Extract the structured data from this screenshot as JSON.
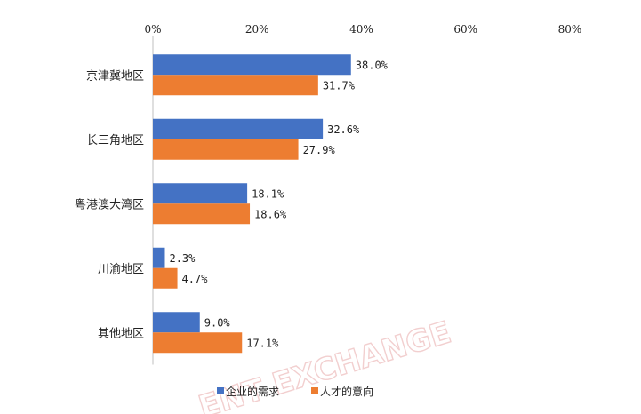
{
  "chart_data": {
    "type": "bar",
    "orientation": "horizontal",
    "categories": [
      "京津冀地区",
      "长三角地区",
      "粤港澳大湾区",
      "川渝地区",
      "其他地区"
    ],
    "series": [
      {
        "name": "企业的需求",
        "values": [
          38.0,
          32.6,
          18.1,
          2.3,
          9.0
        ],
        "color": "#4472C4"
      },
      {
        "name": "人才的意向",
        "values": [
          31.7,
          27.9,
          18.6,
          4.7,
          17.1
        ],
        "color": "#ED7D31"
      }
    ],
    "value_labels": [
      [
        "38.0%",
        "32.6%",
        "18.1%",
        "2.3%",
        "9.0%"
      ],
      [
        "31.7%",
        "27.9%",
        "18.6%",
        "4.7%",
        "17.1%"
      ]
    ],
    "xlim": [
      0,
      80
    ],
    "xticks": [
      "0%",
      "20%",
      "40%",
      "60%",
      "80%"
    ],
    "grid": false,
    "legend_position": "bottom",
    "title": "",
    "xlabel": "",
    "ylabel": ""
  },
  "watermark": "ENT EXCHANGE"
}
